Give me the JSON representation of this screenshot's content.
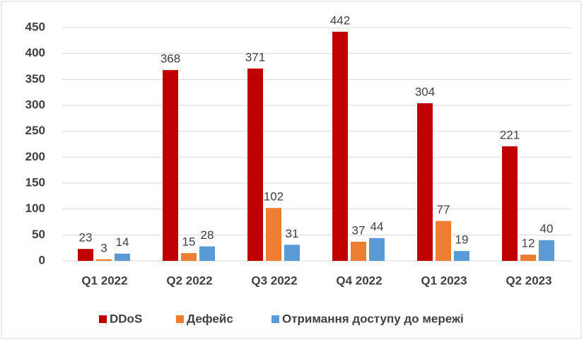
{
  "chart_data": {
    "type": "bar",
    "categories": [
      "Q1 2022",
      "Q2 2022",
      "Q3 2022",
      "Q4 2022",
      "Q1 2023",
      "Q2 2023"
    ],
    "series": [
      {
        "name": "DDoS",
        "color": "#c00000",
        "values": [
          23,
          368,
          371,
          442,
          304,
          221
        ]
      },
      {
        "name": "Дефейс",
        "color": "#ed7d31",
        "values": [
          3,
          15,
          102,
          37,
          77,
          12
        ]
      },
      {
        "name": "Отримання доступу до мережі",
        "color": "#5b9bd5",
        "values": [
          14,
          28,
          31,
          44,
          19,
          40
        ]
      }
    ],
    "ylim": [
      0,
      450
    ],
    "yticks": [
      0,
      50,
      100,
      150,
      200,
      250,
      300,
      350,
      400,
      450
    ],
    "grid": true,
    "legend": "bottom"
  }
}
